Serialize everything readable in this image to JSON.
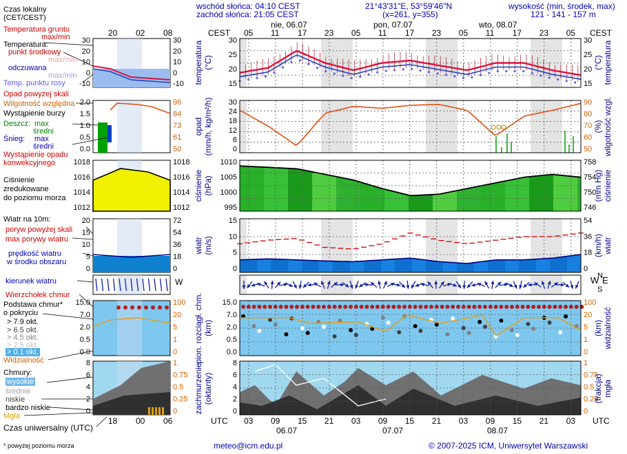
{
  "header": {
    "sunrise": "wschód słońca: 04:10 CEST",
    "sunset": "zachód słońca: 21:05 CEST",
    "coords": "21°43'31\"E, 53°59'46\"N",
    "grid": "(x=261, y=355)",
    "elevation_title": "wysokość (min, środek, max)",
    "elevation": "121 - 141 - 157 m",
    "cest": "CEST",
    "utc": "UTC"
  },
  "days": [
    {
      "label": "nie, 06.07",
      "date": "06.07"
    },
    {
      "label": "pon, 07.07",
      "date": "07.07"
    },
    {
      "label": "wto, 08.07",
      "date": "08.07"
    }
  ],
  "cest_hours": [
    "05",
    "11",
    "17",
    "23",
    "05",
    "11",
    "17",
    "23",
    "05",
    "11",
    "17",
    "23",
    "05"
  ],
  "utc_hours": [
    "03",
    "09",
    "15",
    "21",
    "03",
    "09",
    "15",
    "21",
    "03",
    "09",
    "15",
    "21",
    "03"
  ],
  "legend": {
    "local_time": "Czas lokalny",
    "local_time_sub": "(CET/CEST)",
    "lt_ticks": [
      "20",
      "02",
      "08"
    ],
    "utc_ticks": [
      "18",
      "00",
      "06"
    ],
    "ground_temp": "Temperatura gruntu",
    "ground_temp_sub": "max/min",
    "temp": "Temperatura:",
    "temp_mid": "punkt środkowy",
    "temp_maxmin": "max/min",
    "temp_felt": "odczuwana",
    "temp_felt_maxmin": "max/min",
    "dew": "Temp. punktu rosy",
    "precip_above": "Opad powyżej skali",
    "humidity": "Wilgotność względna",
    "storm": "Wystąpienie burzy",
    "rain": "Deszcz:",
    "rain_max": "max",
    "rain_mean": "średni",
    "snow": "Śnieg:",
    "snow_max": "max",
    "snow_mean": "średni",
    "conv": "Wystąpienie opadu",
    "conv2": "konwekcyjnego",
    "pressure1": "Ciśnienie",
    "pressure2": "zredukowane",
    "pressure3": "do poziomu morza",
    "wind_title": "Wiatr na 10m:",
    "gust_above": "poryw powyżej skali",
    "gust_max": "max porywy wiatru",
    "wind_speed": "prędkość wiatru",
    "wind_speed2": "w środku obszaru",
    "wind_dir": "kierunek wiatru",
    "cloud_top": "Wierzchołek chmur",
    "cloud_base": "Podstawa chmur*",
    "cloud_base2": "o pokryciu",
    "okt1": "> 7.9 okt.",
    "okt2": "> 6.5 okt.",
    "okt3": "> 4.5 okt.",
    "okt4": "> 2.5 okt.",
    "okt5": "> 0.1 okt.",
    "visibility": "Widzialność",
    "clouds": "Chmury:",
    "cl_high": "wysokie",
    "cl_mid": "średnie",
    "cl_low": "niskie",
    "cl_vlow": "bardzo niskie",
    "fog": "Mgła",
    "utc_time": "Czas uniwersalny (UTC)",
    "footnote": "* powyżej poziomu morza"
  },
  "axis_labels": {
    "temp_l": "temperatura",
    "temp_l2": "(°C)",
    "temp_r": "temperatura",
    "temp_r2": "(°C)",
    "precip_l": "opad",
    "precip_l2": "(mm/h, kg/m²/h)",
    "precip_r": "wilgotność wzgl.",
    "precip_r2": "(%)",
    "press_l": "ciśnienie",
    "press_l2": "(hPa)",
    "press_r": "ciśnienie",
    "press_r2": "(mm Hg)",
    "wind_l": "wiatr",
    "wind_l2": "(m/s)",
    "wind_r": "wiatr",
    "wind_r2": "(km/h)",
    "cloud_l": "pion. rozciągł. chm.",
    "cloud_l2": "(km)",
    "cloud_r": "widzialność",
    "cloud_r2": "(km)",
    "cov_l": "zachmurzenie",
    "cov_l2": "(oktanty)",
    "cov_r": "mgła",
    "cov_r2": "(frakcja)",
    "dir_n": "N",
    "dir_w": "W",
    "dir_e": "E",
    "dir_s": "S"
  },
  "ticks": {
    "temp": [
      "30",
      "25",
      "20",
      "15"
    ],
    "precip_l": [
      "30",
      "24",
      "18",
      "12",
      "6",
      "0"
    ],
    "precip_r": [
      "90",
      "80",
      "70",
      "60",
      "50"
    ],
    "press_l": [
      "1010",
      "1005",
      "1000",
      "995"
    ],
    "press_r": [
      "758",
      "754",
      "750",
      "746"
    ],
    "wind_l": [
      "15",
      "10",
      "5",
      "0"
    ],
    "wind_r": [
      "54",
      "36",
      "18",
      "0"
    ],
    "cloud_l": [
      "15.0",
      "7.0",
      "2.0",
      "0.5",
      "0.0"
    ],
    "cloud_r": [
      "100",
      "20",
      "5",
      "1",
      "0"
    ],
    "cov_l": [
      "8",
      "6",
      "4",
      "2",
      "0"
    ],
    "cov_r": [
      "1",
      "0.75",
      "0.5",
      "0.25",
      "0"
    ],
    "leg_temp_l": [
      "30",
      "20",
      "10",
      "0",
      "-10"
    ],
    "leg_temp_r": [
      "30",
      "20",
      "10",
      "0",
      "-10"
    ],
    "leg_prec_l": [
      "2.0",
      "1.5",
      "1.0",
      "0.5",
      "0.0"
    ],
    "leg_prec_r": [
      "96",
      "84",
      "73",
      "61",
      "50"
    ],
    "leg_press_l": [
      "1018",
      "1016",
      "1014",
      "1012"
    ],
    "leg_press_r": [
      "1018",
      "1016",
      "1014",
      "1012"
    ],
    "leg_wind_l": [
      "20",
      "15",
      "10",
      "5",
      "0"
    ],
    "leg_wind_r": [
      "72",
      "54",
      "36",
      "18",
      "0"
    ],
    "leg_cloud_l": [
      "15.0",
      "7.0",
      "2.0",
      "0.5",
      "0.0"
    ],
    "leg_cloud_r": [
      "100",
      "20",
      "5",
      "1",
      "0"
    ],
    "leg_cov_l": [
      "8",
      "6",
      "4",
      "2",
      "0"
    ],
    "leg_cov_r": [
      "1",
      "0.75",
      "0.5",
      "0.25",
      "0"
    ]
  },
  "footer": {
    "email": "meteo@icm.edu.pl",
    "copyright": "© 2007-2025 ICM, Uniwersytet Warszawski"
  },
  "colors": {
    "temp": "#e0103a",
    "dew": "#6060e0",
    "humidity": "#e05010",
    "pressure": "#00a000",
    "gust": "#d00000",
    "wind": "#0060d0",
    "cloud_bg": "#7ec8f0",
    "cover_bg": "#a0d8f0",
    "visibility": "#e0a020"
  },
  "chart_data": [
    {
      "type": "line",
      "title": "temperatura",
      "ylabel": "temperatura (°C)",
      "ylim": [
        10,
        30
      ],
      "x": [
        "06.07 02",
        "06.07 08",
        "06.07 14",
        "06.07 20",
        "07.07 02",
        "07.07 08",
        "07.07 14",
        "07.07 20",
        "08.07 02",
        "08.07 08",
        "08.07 14",
        "08.07 20",
        "09.07 02"
      ],
      "series": [
        {
          "values": [
            16,
            18,
            25,
            20,
            17,
            20,
            21,
            19,
            17,
            20,
            20,
            17,
            15
          ]
        }
      ]
    },
    {
      "type": "line",
      "title": "opad",
      "ylabel": "opad (mm/h, kg/m²/h)",
      "ylim": [
        0,
        30
      ],
      "x": [
        "06.07 02",
        "06.07 08",
        "06.07 14",
        "06.07 20",
        "07.07 02",
        "07.07 08",
        "07.07 14",
        "07.07 20",
        "08.07 02",
        "08.07 08",
        "08.07 14",
        "08.07 20",
        "09.07 02"
      ],
      "series": [
        {
          "values": [
            88,
            72,
            52,
            85,
            92,
            90,
            93,
            94,
            88,
            62,
            82,
            88,
            95
          ]
        }
      ]
    },
    {
      "type": "area",
      "title": "ciśnienie",
      "ylabel": "ciśnienie (hPa)",
      "ylim": [
        995,
        1013
      ],
      "x": [
        "06.07 02",
        "06.07 08",
        "06.07 14",
        "06.07 20",
        "07.07 02",
        "07.07 08",
        "07.07 14",
        "07.07 20",
        "08.07 02",
        "08.07 08",
        "08.07 14",
        "08.07 20",
        "09.07 02"
      ],
      "series": [
        {
          "values": [
            1011,
            1010.5,
            1010,
            1008,
            1006,
            1003,
            1000.5,
            1001,
            1003,
            1005,
            1007,
            1008,
            1007
          ]
        }
      ]
    },
    {
      "type": "area",
      "title": "wiatr",
      "ylabel": "wiatr (m/s)",
      "ylim": [
        0,
        15
      ],
      "x": [
        "06.07 02",
        "06.07 08",
        "06.07 14",
        "06.07 20",
        "07.07 02",
        "07.07 08",
        "07.07 14",
        "07.07 20",
        "08.07 02",
        "08.07 08",
        "08.07 14",
        "08.07 20",
        "09.07 02"
      ],
      "series": [
        {
          "values": [
            3.5,
            3.8,
            3.5,
            3.2,
            3,
            3.5,
            4,
            3,
            2.5,
            3.5,
            3.5,
            4,
            5
          ]
        },
        {
          "values": [
            8,
            9,
            9.5,
            7,
            6.5,
            8,
            11,
            9,
            8,
            9,
            10,
            10,
            11
          ]
        }
      ]
    }
  ]
}
